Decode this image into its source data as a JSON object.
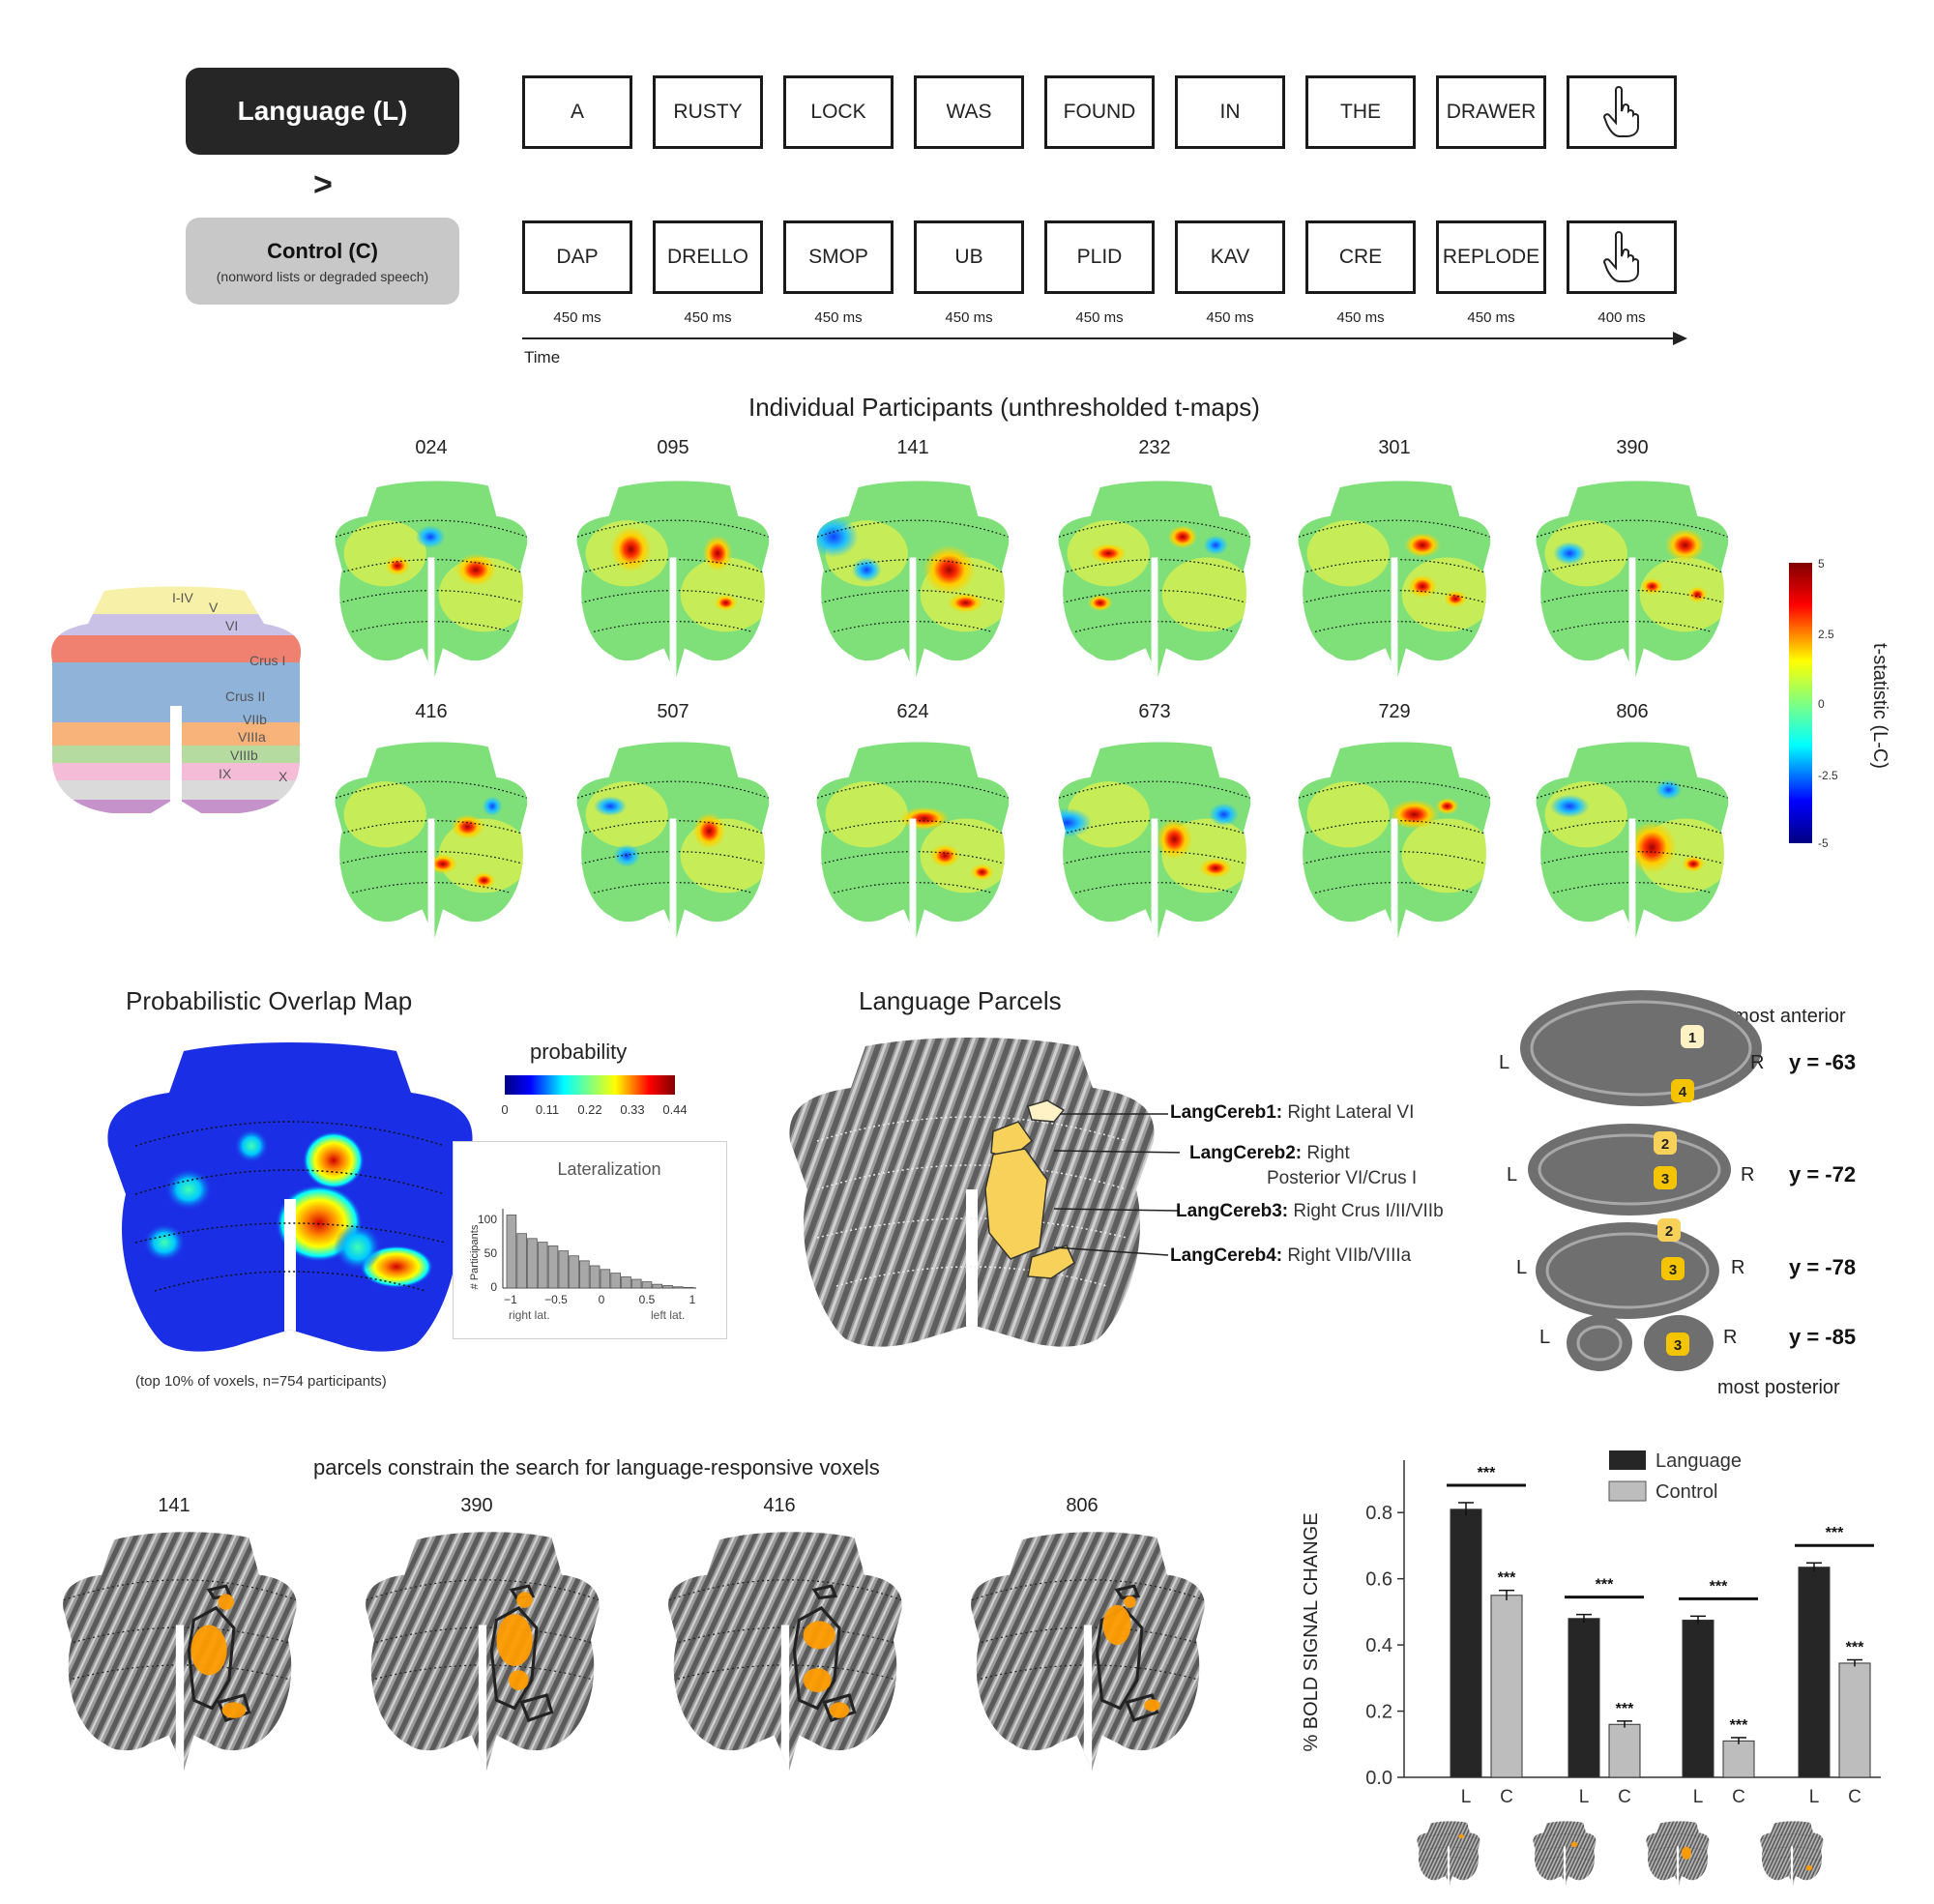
{
  "paradigm": {
    "language_label": "Language (L)",
    "gt_symbol": ">",
    "control_label": "Control (C)",
    "control_sub": "(nonword lists or degraded speech)",
    "language_words": [
      "A",
      "RUSTY",
      "LOCK",
      "WAS",
      "FOUND",
      "IN",
      "THE",
      "DRAWER"
    ],
    "control_words": [
      "DAP",
      "DRELLO",
      "SMOP",
      "UB",
      "PLID",
      "KAV",
      "CRE",
      "REPLODE"
    ],
    "durations": [
      "450 ms",
      "450 ms",
      "450 ms",
      "450 ms",
      "450 ms",
      "450 ms",
      "450 ms",
      "450 ms",
      "400 ms"
    ],
    "time_label": "Time",
    "response_icon": "hand-pointer-icon"
  },
  "individual": {
    "title": "Individual Participants (unthresholded t-maps)",
    "ids": [
      "024",
      "095",
      "141",
      "232",
      "301",
      "390",
      "416",
      "507",
      "624",
      "673",
      "729",
      "806"
    ],
    "colorbar": {
      "label": "t-statistic (L-C)",
      "ticks": [
        "5",
        "2.5",
        "0",
        "-2.5",
        "-5"
      ]
    }
  },
  "atlas": {
    "labels": [
      "I-IV",
      "V",
      "VI",
      "Crus I",
      "Crus II",
      "VIIb",
      "VIIIa",
      "VIIIb",
      "IX",
      "X"
    ]
  },
  "overlap": {
    "title": "Probabilistic Overlap Map",
    "colorbar_title": "probability",
    "colorbar_ticks": [
      "0",
      "0.11",
      "0.22",
      "0.33",
      "0.44"
    ],
    "footnote": "(top 10% of voxels, n=754 participants)"
  },
  "lateralization": {
    "title": "Lateralization",
    "ylabel": "# Participants",
    "yticks": [
      "100",
      "50",
      "0"
    ],
    "xticks": [
      "−1",
      "−0.5",
      "0",
      "0.5",
      "1"
    ],
    "left_note": "right lat.",
    "right_note": "left lat.",
    "counts": [
      118,
      88,
      80,
      74,
      68,
      60,
      52,
      44,
      36,
      30,
      24,
      18,
      14,
      10,
      6,
      4,
      2,
      1
    ]
  },
  "parcels": {
    "title": "Language Parcels",
    "items": [
      {
        "name": "LangCereb1:",
        "desc": "Right Lateral VI"
      },
      {
        "name": "LangCereb2:",
        "desc": "Right"
      },
      {
        "name": "LangCereb3:",
        "desc": "Right Crus I/II/VIIb"
      },
      {
        "name": "LangCereb4:",
        "desc": "Right VIIb/VIIIa"
      }
    ],
    "item2_line2": "Posterior VI/Crus I"
  },
  "slices": {
    "top_label": "most anterior",
    "bottom_label": "most posterior",
    "rows": [
      {
        "y": "y = -63",
        "parcels": [
          "1",
          "4"
        ]
      },
      {
        "y": "y = -72",
        "parcels": [
          "2",
          "3"
        ]
      },
      {
        "y": "y = -78",
        "parcels": [
          "2",
          "3"
        ]
      },
      {
        "y": "y = -85",
        "parcels": [
          "3"
        ]
      }
    ],
    "left": "L",
    "right": "R"
  },
  "constrain": {
    "title": "parcels constrain the search for language-responsive voxels",
    "ids": [
      "141",
      "390",
      "416",
      "806"
    ]
  },
  "chart_data": {
    "type": "bar",
    "categories": [
      "LangCereb1",
      "LangCereb2",
      "LangCereb3",
      "LangCereb4"
    ],
    "series": [
      {
        "name": "Language",
        "values": [
          0.81,
          0.48,
          0.475,
          0.635
        ],
        "errors": [
          0.02,
          0.012,
          0.012,
          0.013
        ],
        "color": "#262626"
      },
      {
        "name": "Control",
        "values": [
          0.55,
          0.16,
          0.11,
          0.345
        ],
        "errors": [
          0.015,
          0.01,
          0.01,
          0.01
        ],
        "color": "#bdbdbd"
      }
    ],
    "ylabel": "% BOLD SIGNAL CHANGE",
    "ylim": [
      0.0,
      0.9
    ],
    "yticks": [
      "0.0",
      "0.2",
      "0.4",
      "0.6",
      "0.8"
    ],
    "bar_labels": [
      "L",
      "C"
    ],
    "significance": "***",
    "legend": [
      "Language",
      "Control"
    ],
    "legend_position": "top-right"
  }
}
